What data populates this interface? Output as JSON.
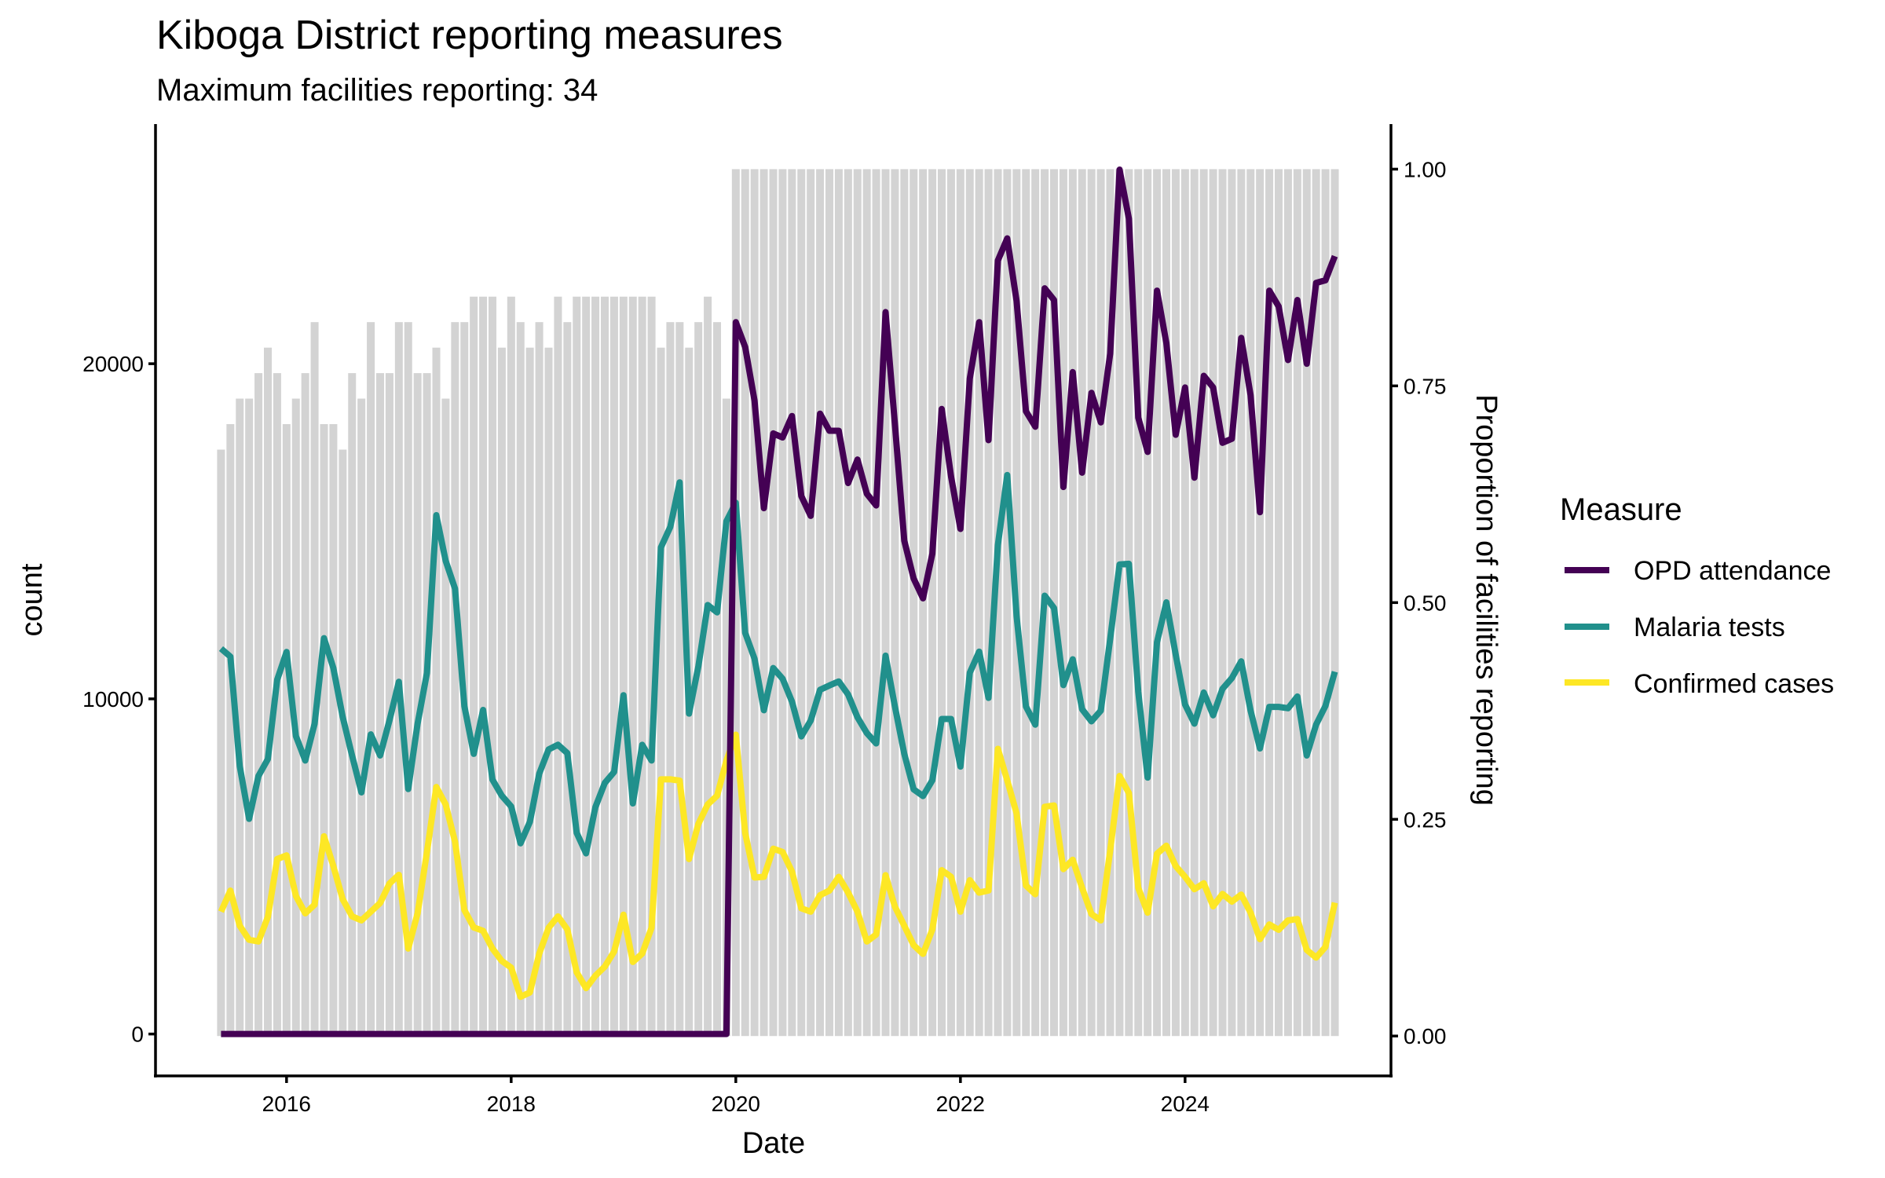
{
  "chart_data": {
    "type": "line",
    "secondary_type": "bar",
    "title": "Kiboga District reporting measures",
    "subtitle": "Maximum facilities reporting: 34",
    "xlabel": "Date",
    "ylabel": "count",
    "ylabel_right": "Proportion of facilities reporting",
    "x_start": "2015-06",
    "x_end": "2025-05",
    "frequency": "monthly",
    "xlim": [
      "2014-11",
      "2025-11"
    ],
    "x_ticks": [
      "2016",
      "2018",
      "2020",
      "2022",
      "2024"
    ],
    "ylim": [
      -1250,
      27150
    ],
    "y_ticks": [
      "0",
      "10000",
      "20000"
    ],
    "y_tick_values": [
      0,
      10000,
      20000
    ],
    "ylim_right": [
      -0.046,
      1.052
    ],
    "y_ticks_right": [
      "0.00",
      "0.25",
      "0.50",
      "0.75",
      "1.00"
    ],
    "y_tick_values_right": [
      0,
      0.25,
      0.5,
      0.75,
      1.0
    ],
    "grid": false,
    "legend": {
      "title": "Measure",
      "position": "right"
    },
    "max_facilities": 34,
    "bars": {
      "name": "Proportion of facilities reporting",
      "color": "#d3d3d3",
      "facilities_reporting": [
        23,
        24,
        25,
        25,
        26,
        27,
        26,
        24,
        25,
        26,
        28,
        24,
        24,
        23,
        26,
        25,
        28,
        26,
        26,
        28,
        28,
        26,
        26,
        27,
        25,
        28,
        28,
        29,
        29,
        29,
        27,
        29,
        28,
        27,
        28,
        27,
        29,
        28,
        29,
        29,
        29,
        29,
        29,
        29,
        29,
        29,
        29,
        27,
        28,
        28,
        27,
        28,
        29,
        28,
        25,
        34,
        34,
        34,
        34,
        34,
        34,
        34,
        34,
        34,
        34,
        34,
        34,
        34,
        34,
        34,
        34,
        34,
        34,
        34,
        34,
        34,
        34,
        34,
        34,
        34,
        34,
        34,
        34,
        34,
        34,
        34,
        34,
        34,
        34,
        34,
        34,
        34,
        34,
        34,
        34,
        34,
        34,
        34,
        34,
        34,
        34,
        34,
        34,
        34,
        34,
        34,
        34,
        34,
        34,
        34,
        34,
        34,
        34,
        34,
        34,
        34,
        34,
        34,
        34,
        34
      ]
    },
    "series": [
      {
        "name": "OPD attendance",
        "color": "#440154",
        "values": [
          0,
          0,
          0,
          0,
          0,
          0,
          0,
          0,
          0,
          0,
          0,
          0,
          0,
          0,
          0,
          0,
          0,
          0,
          0,
          0,
          0,
          0,
          0,
          0,
          0,
          0,
          0,
          0,
          0,
          0,
          0,
          0,
          0,
          0,
          0,
          0,
          0,
          0,
          0,
          0,
          0,
          0,
          0,
          0,
          0,
          0,
          0,
          0,
          0,
          0,
          0,
          0,
          0,
          0,
          0,
          21240,
          20500,
          18900,
          15690,
          17920,
          17800,
          18440,
          16050,
          15460,
          18510,
          18000,
          18000,
          16440,
          17140,
          16120,
          15770,
          21540,
          18190,
          14720,
          13590,
          13000,
          14330,
          18650,
          16630,
          15070,
          19560,
          21240,
          17720,
          23080,
          23740,
          21870,
          18580,
          18120,
          22250,
          21900,
          16320,
          19750,
          16750,
          19130,
          18250,
          20300,
          25790,
          24330,
          18390,
          17370,
          22180,
          20620,
          17880,
          19290,
          16600,
          19640,
          19290,
          17640,
          17760,
          20770,
          19060,
          15570,
          22180,
          21710,
          20110,
          21900,
          20000,
          22410,
          22490,
          23210
        ]
      },
      {
        "name": "Malaria tests",
        "color": "#21908c",
        "values": [
          11500,
          11260,
          7990,
          6420,
          7700,
          8200,
          10570,
          11400,
          8890,
          8160,
          9260,
          11810,
          10920,
          9460,
          8310,
          7210,
          8940,
          8310,
          9360,
          10510,
          7310,
          9260,
          10770,
          15480,
          14120,
          13290,
          9780,
          8360,
          9670,
          7590,
          7110,
          6790,
          5690,
          6330,
          7770,
          8490,
          8630,
          8380,
          6000,
          5390,
          6770,
          7490,
          7820,
          10110,
          6880,
          8630,
          8160,
          14520,
          15130,
          16460,
          9560,
          10970,
          12800,
          12580,
          15300,
          15850,
          11970,
          11200,
          9660,
          10920,
          10600,
          9920,
          8880,
          9350,
          10270,
          10400,
          10520,
          10130,
          9450,
          8980,
          8670,
          11290,
          9770,
          8360,
          7300,
          7100,
          7570,
          9400,
          9400,
          7980,
          10780,
          11410,
          10030,
          14590,
          16680,
          12470,
          9770,
          9230,
          13080,
          12710,
          10410,
          11180,
          9690,
          9330,
          9650,
          11790,
          14010,
          14030,
          10210,
          7650,
          11690,
          12880,
          11320,
          9830,
          9260,
          10190,
          9510,
          10300,
          10620,
          11120,
          9650,
          8520,
          9760,
          9760,
          9720,
          10070,
          8310,
          9230,
          9790,
          10810
        ]
      },
      {
        "name": "Confirmed cases",
        "color": "#fde725",
        "values": [
          3650,
          4280,
          3230,
          2810,
          2760,
          3490,
          5220,
          5330,
          4120,
          3600,
          3860,
          5900,
          5010,
          4020,
          3510,
          3390,
          3650,
          3910,
          4490,
          4750,
          2550,
          3600,
          5430,
          7370,
          6850,
          5740,
          3700,
          3180,
          3080,
          2550,
          2180,
          1980,
          1110,
          1240,
          2400,
          3170,
          3510,
          3120,
          1840,
          1370,
          1740,
          2010,
          2460,
          3560,
          2150,
          2400,
          3170,
          7600,
          7600,
          7560,
          5220,
          6270,
          6850,
          7110,
          8160,
          8930,
          6000,
          4670,
          4690,
          5530,
          5430,
          4850,
          3750,
          3650,
          4140,
          4280,
          4690,
          4220,
          3650,
          2760,
          2970,
          4740,
          3800,
          3230,
          2650,
          2390,
          3120,
          4890,
          4690,
          3650,
          4590,
          4220,
          4280,
          8510,
          7570,
          6580,
          4430,
          4170,
          6780,
          6820,
          4920,
          5200,
          4360,
          3580,
          3390,
          5480,
          7700,
          7190,
          4360,
          3620,
          5380,
          5620,
          5010,
          4690,
          4320,
          4500,
          3810,
          4180,
          3950,
          4160,
          3620,
          2830,
          3270,
          3110,
          3390,
          3430,
          2510,
          2280,
          2600,
          3920
        ]
      }
    ]
  }
}
